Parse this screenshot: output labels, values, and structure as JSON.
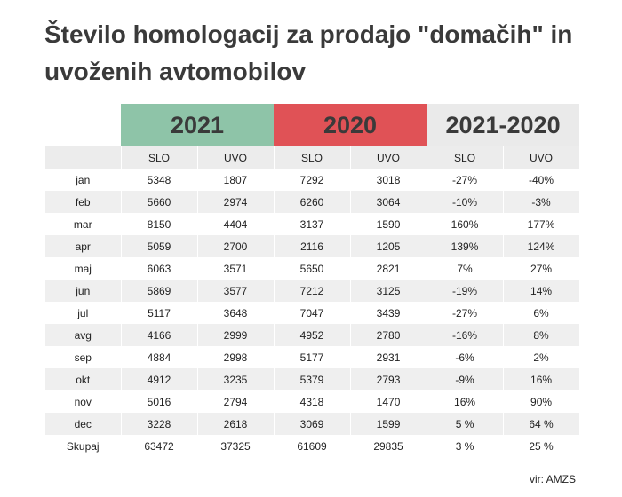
{
  "title": "Število homologacij za prodajo \"domačih\" in uvoženih avtomobilov",
  "group_headers": [
    "2021",
    "2020",
    "2021-2020"
  ],
  "colors": {
    "g2021": "#8ec4a8",
    "g2020": "#e05256",
    "gdiff": "#eaeaea"
  },
  "sub_headers": [
    "SLO",
    "UVO",
    "SLO",
    "UVO",
    "SLO",
    "UVO"
  ],
  "rows": [
    [
      "jan",
      "5348",
      "1807",
      "7292",
      "3018",
      "-27%",
      "-40%"
    ],
    [
      "feb",
      "5660",
      "2974",
      "6260",
      "3064",
      "-10%",
      "-3%"
    ],
    [
      "mar",
      "8150",
      "4404",
      "3137",
      "1590",
      "160%",
      "177%"
    ],
    [
      "apr",
      "5059",
      "2700",
      "2116",
      "1205",
      "139%",
      "124%"
    ],
    [
      "maj",
      "6063",
      "3571",
      "5650",
      "2821",
      "7%",
      "27%"
    ],
    [
      "jun",
      "5869",
      "3577",
      "7212",
      "3125",
      "-19%",
      "14%"
    ],
    [
      "jul",
      "5117",
      "3648",
      "7047",
      "3439",
      "-27%",
      "6%"
    ],
    [
      "avg",
      "4166",
      "2999",
      "4952",
      "2780",
      "-16%",
      "8%"
    ],
    [
      "sep",
      "4884",
      "2998",
      "5177",
      "2931",
      "-6%",
      "2%"
    ],
    [
      "okt",
      "4912",
      "3235",
      "5379",
      "2793",
      "-9%",
      "16%"
    ],
    [
      "nov",
      "5016",
      "2794",
      "4318",
      "1470",
      "16%",
      "90%"
    ],
    [
      "dec",
      "3228",
      "2618",
      "3069",
      "1599",
      "5 %",
      "64 %"
    ],
    [
      "Skupaj",
      "63472",
      "37325",
      "61609",
      "29835",
      "3 %",
      "25 %"
    ]
  ],
  "source": "vir: AMZS"
}
